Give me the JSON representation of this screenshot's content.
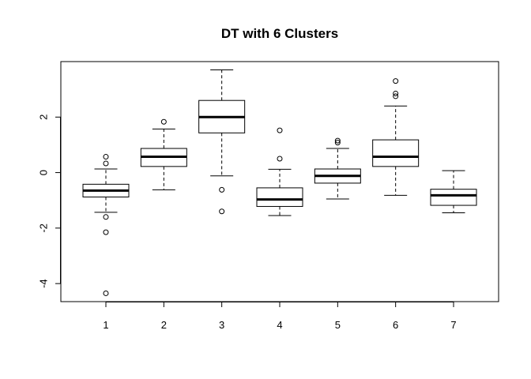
{
  "chart_data": {
    "type": "boxplot",
    "title": "DT with 6 Clusters",
    "xlabel": "",
    "ylabel": "",
    "categories": [
      "1",
      "2",
      "3",
      "4",
      "5",
      "6",
      "7"
    ],
    "y_ticks": [
      -4,
      -2,
      0,
      2
    ],
    "y_tick_labels": [
      "-4",
      "-2",
      "0",
      "2"
    ],
    "ylim": [
      -4.65,
      4.0
    ],
    "grid": false,
    "legend": "none",
    "boxes": [
      {
        "category": "1",
        "whisker_low": -1.43,
        "q1": -0.88,
        "median": -0.65,
        "q3": -0.42,
        "whisker_high": 0.13,
        "outliers": [
          0.57,
          0.33,
          -1.6,
          -2.15,
          -4.35
        ]
      },
      {
        "category": "2",
        "whisker_low": -0.62,
        "q1": 0.22,
        "median": 0.57,
        "q3": 0.87,
        "whisker_high": 1.57,
        "outliers": [
          1.83
        ]
      },
      {
        "category": "3",
        "whisker_low": -0.12,
        "q1": 1.43,
        "median": 2.0,
        "q3": 2.6,
        "whisker_high": 3.7,
        "outliers": [
          -0.62,
          -1.4
        ]
      },
      {
        "category": "4",
        "whisker_low": -1.55,
        "q1": -1.22,
        "median": -0.97,
        "q3": -0.55,
        "whisker_high": 0.12,
        "outliers": [
          1.52,
          0.5
        ]
      },
      {
        "category": "5",
        "whisker_low": -0.95,
        "q1": -0.38,
        "median": -0.12,
        "q3": 0.13,
        "whisker_high": 0.87,
        "outliers": [
          1.15,
          1.08
        ]
      },
      {
        "category": "6",
        "whisker_low": -0.82,
        "q1": 0.22,
        "median": 0.57,
        "q3": 1.18,
        "whisker_high": 2.4,
        "outliers": [
          3.3,
          2.85,
          2.75
        ]
      },
      {
        "category": "7",
        "whisker_low": -1.45,
        "q1": -1.18,
        "median": -0.82,
        "q3": -0.6,
        "whisker_high": 0.07,
        "outliers": []
      }
    ]
  }
}
